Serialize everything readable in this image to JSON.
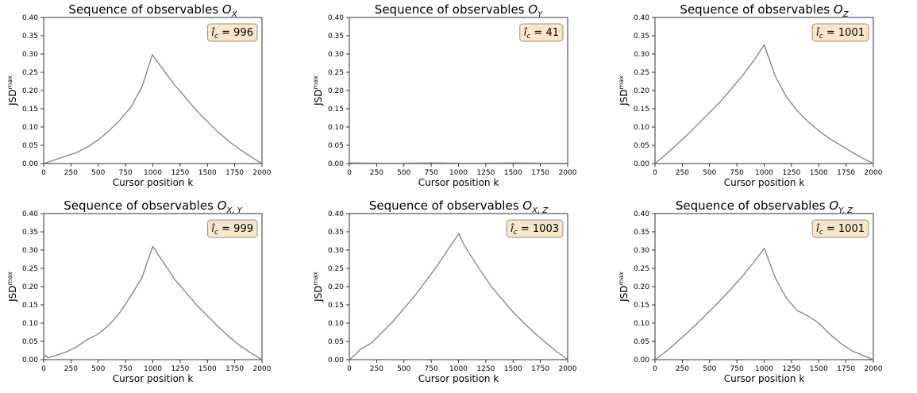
{
  "chart_data": [
    {
      "type": "line",
      "title": "Sequence of observables",
      "title_subscript": "X",
      "xlabel": "Cursor position k",
      "ylabel": "JSD",
      "ylabel_superscript": "max",
      "xlim": [
        0,
        2000
      ],
      "ylim": [
        0,
        0.4
      ],
      "xticks": [
        "0",
        "250",
        "500",
        "750",
        "1000",
        "1250",
        "1500",
        "1750",
        "2000"
      ],
      "yticks": [
        "0.00",
        "0.05",
        "0.10",
        "0.15",
        "0.20",
        "0.25",
        "0.30",
        "0.35",
        "0.40"
      ],
      "annotation": {
        "symbol": "î",
        "subscript": "c",
        "eq": " = ",
        "value": "996"
      },
      "series": [
        {
          "x": [
            0,
            100,
            200,
            300,
            400,
            500,
            600,
            700,
            800,
            900,
            996,
            1100,
            1200,
            1300,
            1400,
            1500,
            1600,
            1700,
            1800,
            1900,
            2000
          ],
          "y": [
            0.0,
            0.01,
            0.02,
            0.03,
            0.045,
            0.065,
            0.09,
            0.12,
            0.155,
            0.21,
            0.298,
            0.255,
            0.215,
            0.18,
            0.145,
            0.115,
            0.085,
            0.06,
            0.038,
            0.018,
            0.0
          ]
        }
      ]
    },
    {
      "type": "line",
      "title": "Sequence of observables",
      "title_subscript": "Y",
      "xlabel": "Cursor position k",
      "ylabel": "JSD",
      "ylabel_superscript": "max",
      "xlim": [
        0,
        2000
      ],
      "ylim": [
        0,
        0.4
      ],
      "xticks": [
        "0",
        "250",
        "500",
        "750",
        "1000",
        "1250",
        "1500",
        "1750",
        "2000"
      ],
      "yticks": [
        "0.00",
        "0.05",
        "0.10",
        "0.15",
        "0.20",
        "0.25",
        "0.30",
        "0.35",
        "0.40"
      ],
      "annotation": {
        "symbol": "î",
        "subscript": "c",
        "eq": " = ",
        "value": "41"
      },
      "series": [
        {
          "x": [
            0,
            250,
            500,
            750,
            1000,
            1250,
            1500,
            1750,
            2000
          ],
          "y": [
            0.002,
            0.001,
            0.001,
            0.002,
            0.001,
            0.001,
            0.002,
            0.001,
            0.001
          ]
        }
      ]
    },
    {
      "type": "line",
      "title": "Sequence of observables",
      "title_subscript": "Z",
      "xlabel": "Cursor position k",
      "ylabel": "JSD",
      "ylabel_superscript": "max",
      "xlim": [
        0,
        2000
      ],
      "ylim": [
        0,
        0.4
      ],
      "xticks": [
        "0",
        "250",
        "500",
        "750",
        "1000",
        "1250",
        "1500",
        "1750",
        "2000"
      ],
      "yticks": [
        "0.00",
        "0.05",
        "0.10",
        "0.15",
        "0.20",
        "0.25",
        "0.30",
        "0.35",
        "0.40"
      ],
      "annotation": {
        "symbol": "î",
        "subscript": "c",
        "eq": " = ",
        "value": "1001"
      },
      "series": [
        {
          "x": [
            0,
            100,
            200,
            300,
            400,
            500,
            600,
            700,
            800,
            900,
            1001,
            1100,
            1200,
            1300,
            1400,
            1500,
            1600,
            1700,
            1800,
            1900,
            2000
          ],
          "y": [
            0.0,
            0.025,
            0.052,
            0.08,
            0.11,
            0.14,
            0.17,
            0.205,
            0.24,
            0.28,
            0.325,
            0.24,
            0.185,
            0.145,
            0.115,
            0.09,
            0.068,
            0.05,
            0.032,
            0.015,
            0.0
          ]
        }
      ]
    },
    {
      "type": "line",
      "title": "Sequence of observables",
      "title_subscript": "X, Y",
      "xlabel": "Cursor position k",
      "ylabel": "JSD",
      "ylabel_superscript": "max",
      "xlim": [
        0,
        2000
      ],
      "ylim": [
        0,
        0.4
      ],
      "xticks": [
        "0",
        "250",
        "500",
        "750",
        "1000",
        "1250",
        "1500",
        "1750",
        "2000"
      ],
      "yticks": [
        "0.00",
        "0.05",
        "0.10",
        "0.15",
        "0.20",
        "0.25",
        "0.30",
        "0.35",
        "0.40"
      ],
      "annotation": {
        "symbol": "î",
        "subscript": "c",
        "eq": " = ",
        "value": "999"
      },
      "series": [
        {
          "x": [
            0,
            20,
            40,
            100,
            200,
            300,
            400,
            500,
            600,
            700,
            800,
            900,
            999,
            1100,
            1200,
            1300,
            1400,
            1500,
            1600,
            1700,
            1800,
            1900,
            2000
          ],
          "y": [
            0.005,
            0.012,
            0.005,
            0.01,
            0.02,
            0.035,
            0.055,
            0.07,
            0.095,
            0.13,
            0.175,
            0.225,
            0.31,
            0.265,
            0.22,
            0.185,
            0.15,
            0.12,
            0.09,
            0.062,
            0.038,
            0.018,
            0.0
          ]
        }
      ]
    },
    {
      "type": "line",
      "title": "Sequence of observables",
      "title_subscript": "X, Z",
      "xlabel": "Cursor position k",
      "ylabel": "JSD",
      "ylabel_superscript": "max",
      "xlim": [
        0,
        2000
      ],
      "ylim": [
        0,
        0.4
      ],
      "xticks": [
        "0",
        "250",
        "500",
        "750",
        "1000",
        "1250",
        "1500",
        "1750",
        "2000"
      ],
      "yticks": [
        "0.00",
        "0.05",
        "0.10",
        "0.15",
        "0.20",
        "0.25",
        "0.30",
        "0.35",
        "0.40"
      ],
      "annotation": {
        "symbol": "î",
        "subscript": "c",
        "eq": " = ",
        "value": "1003"
      },
      "series": [
        {
          "x": [
            0,
            50,
            100,
            200,
            300,
            400,
            500,
            600,
            700,
            800,
            900,
            1003,
            1050,
            1100,
            1200,
            1300,
            1400,
            1500,
            1600,
            1700,
            1800,
            1900,
            2000
          ],
          "y": [
            0.0,
            0.012,
            0.028,
            0.045,
            0.075,
            0.105,
            0.14,
            0.175,
            0.215,
            0.255,
            0.3,
            0.345,
            0.315,
            0.29,
            0.245,
            0.2,
            0.165,
            0.13,
            0.1,
            0.072,
            0.046,
            0.022,
            0.0
          ]
        }
      ]
    },
    {
      "type": "line",
      "title": "Sequence of observables",
      "title_subscript": "Y, Z",
      "xlabel": "Cursor position k",
      "ylabel": "JSD",
      "ylabel_superscript": "max",
      "xlim": [
        0,
        2000
      ],
      "ylim": [
        0,
        0.4
      ],
      "xticks": [
        "0",
        "250",
        "500",
        "750",
        "1000",
        "1250",
        "1500",
        "1750",
        "2000"
      ],
      "yticks": [
        "0.00",
        "0.05",
        "0.10",
        "0.15",
        "0.20",
        "0.25",
        "0.30",
        "0.35",
        "0.40"
      ],
      "annotation": {
        "symbol": "î",
        "subscript": "c",
        "eq": " = ",
        "value": "1001"
      },
      "series": [
        {
          "x": [
            0,
            100,
            200,
            300,
            400,
            500,
            600,
            700,
            800,
            900,
            1001,
            1100,
            1200,
            1300,
            1400,
            1500,
            1600,
            1700,
            1800,
            1900,
            2000
          ],
          "y": [
            0.0,
            0.022,
            0.048,
            0.075,
            0.103,
            0.133,
            0.163,
            0.195,
            0.228,
            0.265,
            0.305,
            0.225,
            0.17,
            0.135,
            0.12,
            0.1,
            0.07,
            0.045,
            0.025,
            0.012,
            0.0
          ]
        }
      ]
    }
  ]
}
